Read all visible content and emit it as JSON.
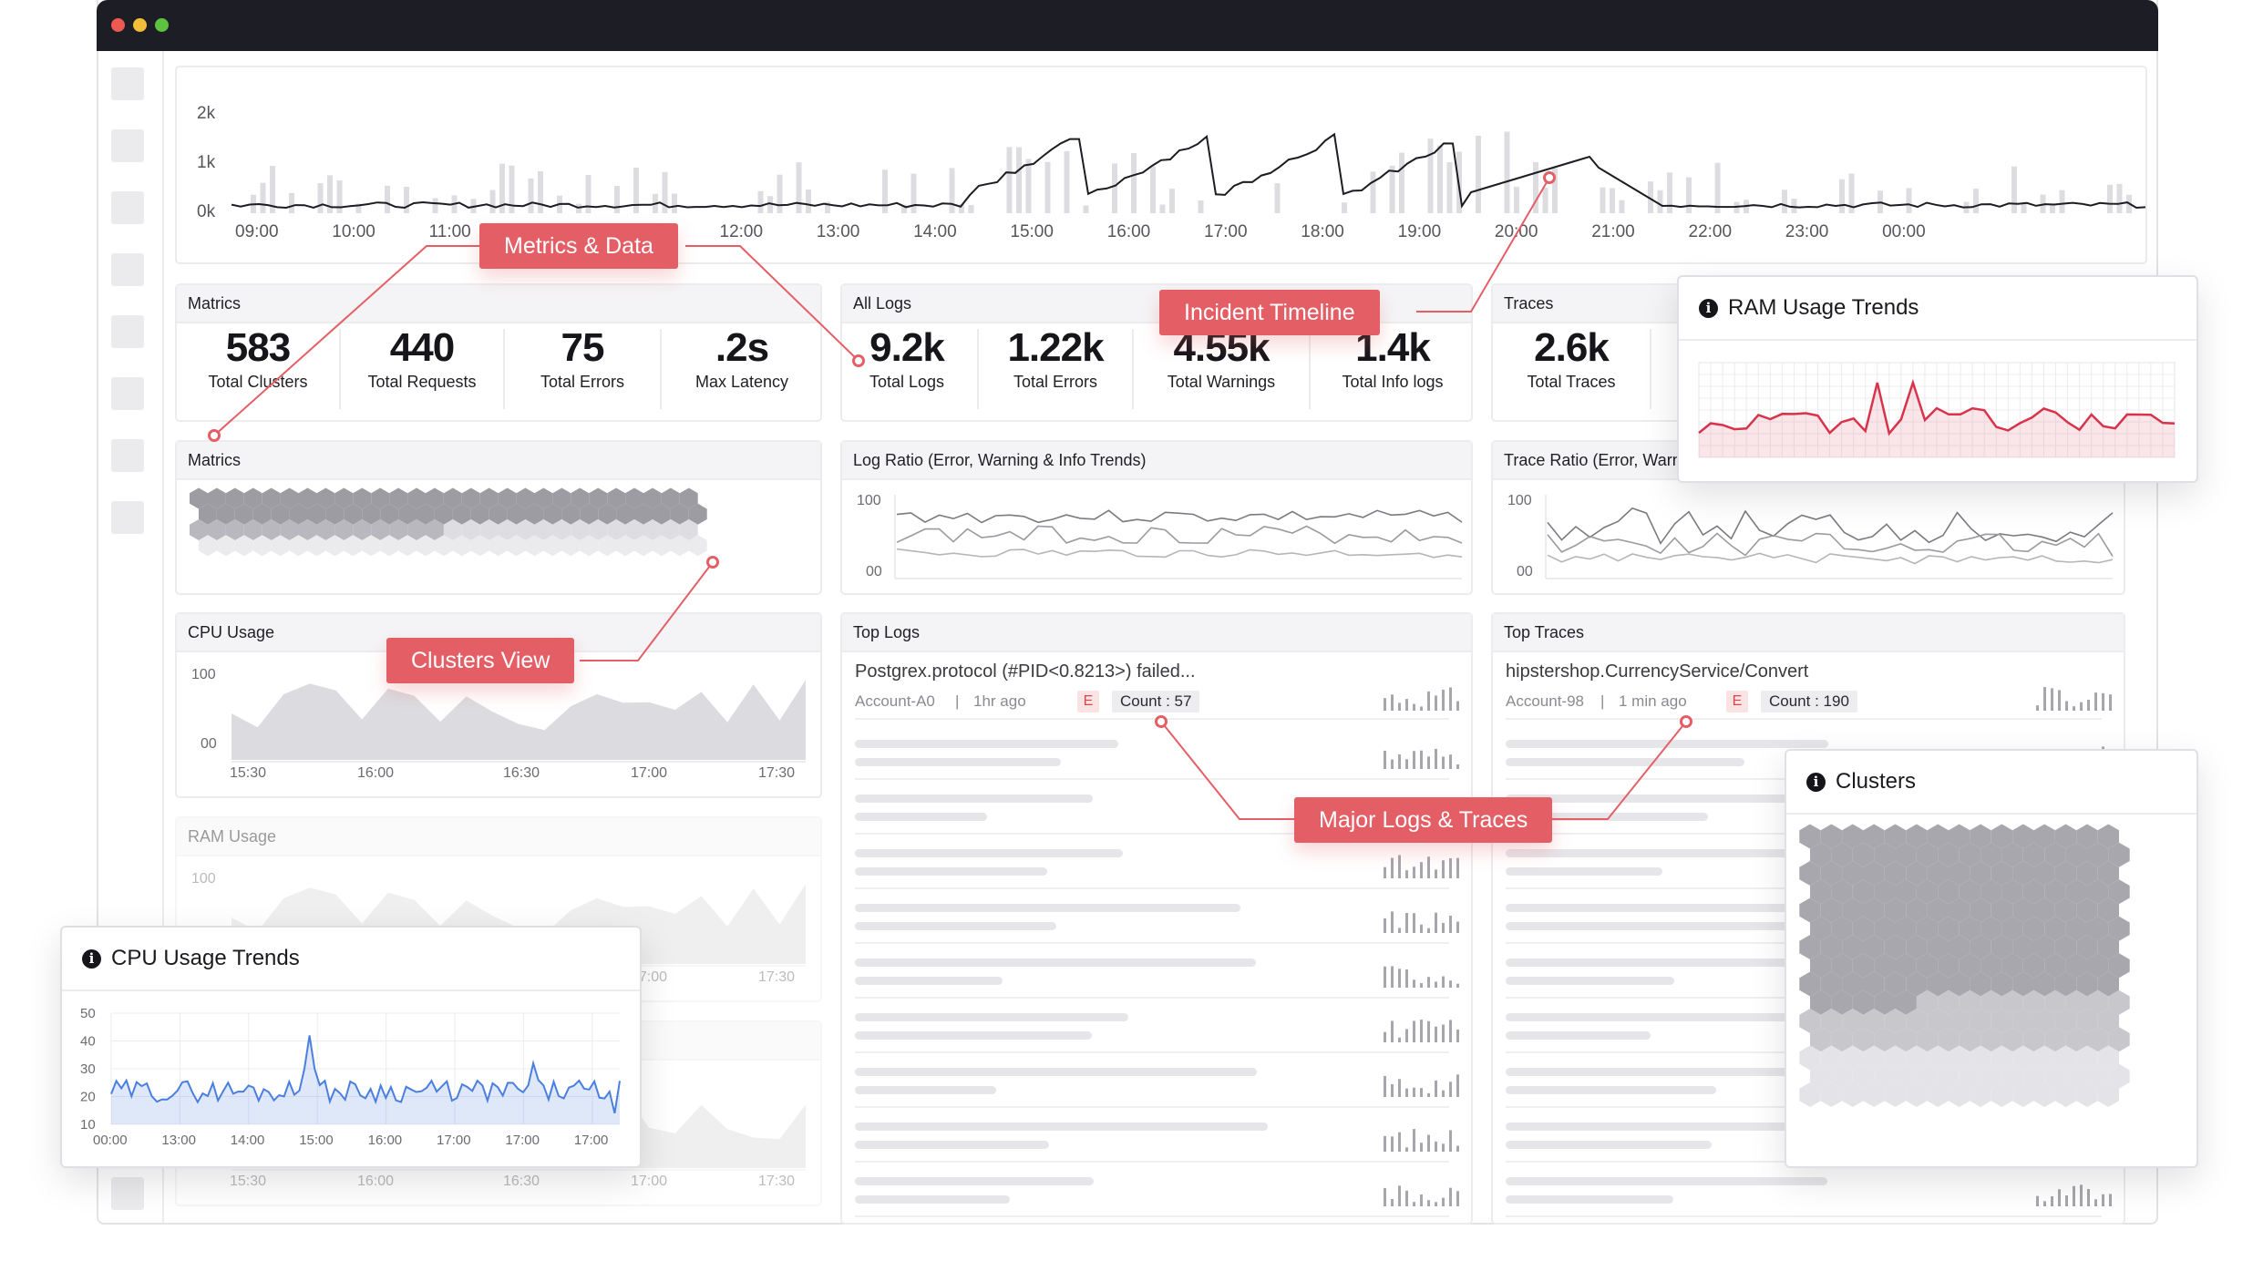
{
  "timeline": {
    "y_ticks": [
      "2k",
      "1k",
      "0k"
    ],
    "x_ticks": [
      "09:00",
      "10:00",
      "11:00",
      "10:00",
      "11:00",
      "12:00",
      "13:00",
      "14:00",
      "15:00",
      "16:00",
      "17:00",
      "18:00",
      "19:00",
      "20:00",
      "21:00",
      "22:00",
      "23:00",
      "00:00"
    ]
  },
  "metrics_panel": {
    "title": "Matrics",
    "stats": [
      {
        "value": "583",
        "label": "Total Clusters"
      },
      {
        "value": "440",
        "label": "Total Requests"
      },
      {
        "value": "75",
        "label": "Total Errors"
      },
      {
        "value": ".2s",
        "label": "Max Latency"
      }
    ]
  },
  "logs_panel": {
    "title": "All Logs",
    "stats": [
      {
        "value": "9.2k",
        "label": "Total Logs"
      },
      {
        "value": "1.22k",
        "label": "Total Errors"
      },
      {
        "value": "4.55k",
        "label": "Total Warnings"
      },
      {
        "value": "1.4k",
        "label": "Total Info logs"
      }
    ]
  },
  "traces_panel": {
    "title": "Traces",
    "stats": [
      {
        "value": "2.6k",
        "label": "Total Traces"
      }
    ]
  },
  "clusters_panel": {
    "title": "Matrics"
  },
  "log_ratio": {
    "title": "Log Ratio (Error, Warning & Info Trends)",
    "y_top": "100",
    "y_bottom": "00"
  },
  "trace_ratio": {
    "title": "Trace Ratio (Error, Warning & Info Trends)",
    "y_top": "100",
    "y_bottom": "00"
  },
  "cpu_panel": {
    "title": "CPU Usage",
    "y_top": "100",
    "y_bottom": "00",
    "x_ticks": [
      "15:30",
      "16:00",
      "16:30",
      "17:00",
      "17:30"
    ]
  },
  "ram_panel": {
    "title": "RAM Usage",
    "y_top": "100",
    "x_ticks": [
      "17:00",
      "17:30"
    ]
  },
  "bottom_panel": {
    "x_ticks": [
      "15:30",
      "16:00",
      "16:30",
      "17:00",
      "17:30"
    ]
  },
  "top_logs": {
    "title": "Top Logs",
    "first": {
      "text": "Postgrex.protocol (#PID<0.8213>) failed...",
      "account": "Account-A0",
      "sep": "|",
      "time": "1hr ago",
      "level": "E",
      "count": "Count : 57"
    }
  },
  "top_traces": {
    "title": "Top Traces",
    "first": {
      "text": "hipstershop.CurrencyService/Convert",
      "account": "Account-98",
      "sep": "|",
      "time": "1 min ago",
      "level": "E",
      "count": "Count : 190"
    }
  },
  "callouts": {
    "metrics": "Metrics & Data",
    "incident": "Incident Timeline",
    "clusters": "Clusters View",
    "major": "Major Logs & Traces"
  },
  "ram_card": {
    "title": "RAM Usage Trends",
    "icon": "info-icon"
  },
  "clusters_card": {
    "title": "Clusters",
    "icon": "info-icon"
  },
  "cpu_card": {
    "title": "CPU Usage Trends",
    "icon": "info-icon",
    "y_ticks": [
      "50",
      "40",
      "30",
      "20",
      "10"
    ],
    "x_ticks": [
      "00:00",
      "13:00",
      "14:00",
      "15:00",
      "16:00",
      "17:00",
      "17:00",
      "17:00"
    ]
  },
  "colors": {
    "accent": "#e45e65",
    "line_blue": "#4a7fe0",
    "ram_red": "#d8334b",
    "titlebar": "#1d1d25"
  }
}
